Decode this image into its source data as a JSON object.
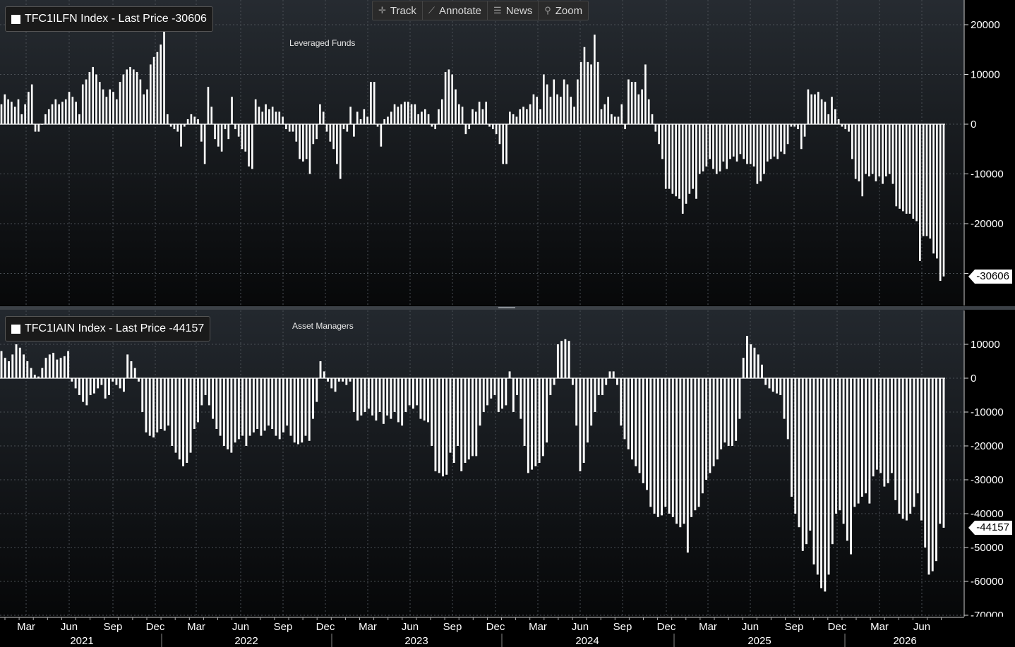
{
  "toolbar": {
    "track_label": "Track",
    "annotate_label": "Annotate",
    "news_label": "News",
    "zoom_label": "Zoom"
  },
  "colors": {
    "background": "#000000",
    "bars": "#ffffff",
    "grid": "#4a4f55",
    "legend_bg": "#1a1a1a"
  },
  "x_axis": {
    "month_labels": [
      "Mar",
      "Jun",
      "Sep",
      "Dec",
      "Mar",
      "Jun",
      "Sep",
      "Dec",
      "Mar",
      "Jun",
      "Sep",
      "Dec",
      "Mar",
      "Jun",
      "Sep",
      "Dec",
      "Mar",
      "Jun",
      "Sep",
      "Dec",
      "Mar",
      "Jun"
    ],
    "year_labels": [
      "2021",
      "2022",
      "2023",
      "2024",
      "2025",
      "2026"
    ]
  },
  "chart_data": [
    {
      "type": "bar",
      "legend": "TFC1ILFN Index - Last Price -30606",
      "title": "Leveraged Funds",
      "last_value_label": "-30606",
      "ylim": [
        -32000,
        24000
      ],
      "yticks": [
        "20000",
        "10000",
        "0",
        "-10000",
        "-20000",
        "-30000"
      ],
      "ytick_values": [
        20000,
        10000,
        0,
        -10000,
        -20000,
        -30000
      ],
      "grid": true,
      "values": [
        4000,
        6000,
        5000,
        4500,
        3500,
        5000,
        2000,
        4000,
        6500,
        8000,
        -1500,
        -1500,
        0,
        2000,
        3000,
        4000,
        5000,
        4000,
        4500,
        5000,
        6500,
        5500,
        4500,
        2000,
        8000,
        9000,
        10500,
        11500,
        10000,
        8500,
        7000,
        5500,
        7000,
        6500,
        5000,
        8500,
        10000,
        11000,
        11500,
        11000,
        10500,
        9000,
        6000,
        7000,
        12000,
        13500,
        14500,
        16000,
        20000,
        2000,
        -500,
        -1000,
        -1500,
        -4500,
        -500,
        1000,
        2000,
        1500,
        1000,
        -3500,
        -8000,
        7500,
        3500,
        -3000,
        -4500,
        -5500,
        -1000,
        -3000,
        5500,
        -1000,
        -2500,
        -5000,
        -5500,
        -8500,
        -9000,
        5000,
        3500,
        2500,
        4000,
        3000,
        3500,
        2500,
        2500,
        1500,
        -1000,
        -1500,
        -1500,
        -3500,
        -7000,
        -7500,
        -7000,
        -10000,
        -4000,
        -3000,
        4000,
        2500,
        -1500,
        -3500,
        -5000,
        -8000,
        -11000,
        -1000,
        -1500,
        3500,
        -2500,
        2500,
        1000,
        3000,
        1500,
        8500,
        8500,
        -500,
        -4500,
        1000,
        1500,
        2500,
        4000,
        3500,
        4000,
        4500,
        4500,
        4000,
        4000,
        2000,
        2500,
        3000,
        2000,
        -500,
        -1000,
        3000,
        5000,
        10500,
        11000,
        10000,
        7000,
        4000,
        3500,
        -2000,
        -1000,
        3000,
        2500,
        4500,
        3000,
        4500,
        -500,
        -1000,
        -2000,
        -4000,
        -8000,
        -8000,
        2500,
        2000,
        1500,
        3000,
        3500,
        3000,
        4000,
        6000,
        5500,
        3000,
        10000,
        8000,
        5500,
        9000,
        6000,
        5500,
        9000,
        8000,
        5500,
        3500,
        9000,
        12500,
        15500,
        12500,
        12000,
        18000,
        12500,
        3000,
        4000,
        5500,
        2000,
        1500,
        1500,
        4000,
        -1000,
        9000,
        8500,
        8500,
        6000,
        7000,
        12000,
        5000,
        2000,
        -1500,
        -4000,
        -7000,
        -13000,
        -13000,
        -14000,
        -14500,
        -15000,
        -18000,
        -16000,
        -14000,
        -13000,
        -15000,
        -10000,
        -9500,
        -8500,
        -7000,
        -9000,
        -10000,
        -9500,
        -7500,
        -9000,
        -7000,
        -6500,
        -7500,
        -6000,
        -7000,
        -8000,
        -8000,
        -8500,
        -12000,
        -11500,
        -10000,
        -7500,
        -7000,
        -6500,
        -7000,
        -5500,
        -6000,
        -4000,
        -500,
        -500,
        -1000,
        -5000,
        -2500,
        7000,
        6000,
        6000,
        6500,
        5000,
        4500,
        2000,
        5500,
        3000,
        1000,
        -500,
        -1000,
        -1500,
        -7000,
        -11000,
        -11500,
        -14500,
        -10000,
        -10500,
        -10000,
        -11500,
        -10500,
        -12000,
        -10500,
        -10000,
        -12000,
        -16500,
        -17000,
        -17500,
        -18000,
        -18000,
        -19000,
        -19500,
        -27500,
        -22500,
        -22500,
        -23000,
        -26000,
        -27000,
        -31500,
        -30606
      ]
    },
    {
      "type": "bar",
      "legend": "TFC1IAIN Index - Last Price -44157",
      "title": "Asset Managers",
      "last_value_label": "-44157",
      "ylim": [
        -70000,
        17000
      ],
      "yticks": [
        "10000",
        "0",
        "-10000",
        "-20000",
        "-30000",
        "-40000",
        "-50000",
        "-60000",
        "-70000"
      ],
      "ytick_values": [
        10000,
        0,
        -10000,
        -20000,
        -30000,
        -40000,
        -50000,
        -60000,
        -70000
      ],
      "grid": true,
      "values": [
        8000,
        6000,
        5000,
        7000,
        10000,
        9000,
        7000,
        5000,
        3000,
        1000,
        500,
        3000,
        6000,
        7000,
        7500,
        5500,
        6000,
        6500,
        8000,
        -1000,
        -3000,
        -5000,
        -7000,
        -8000,
        -5000,
        -4500,
        -3000,
        -2000,
        -6000,
        -5000,
        -1000,
        -2000,
        -3000,
        -4000,
        7000,
        5000,
        3000,
        -1000,
        -10000,
        -16000,
        -17000,
        -17500,
        -16000,
        -15000,
        -15500,
        -14000,
        -20000,
        -22000,
        -24000,
        -26000,
        -25000,
        -22000,
        -15000,
        -13000,
        -8000,
        -5000,
        -8000,
        -12000,
        -15000,
        -17000,
        -20000,
        -21000,
        -22000,
        -19000,
        -18000,
        -17000,
        -20000,
        -17000,
        -16000,
        -15000,
        -17000,
        -15500,
        -14000,
        -15000,
        -17000,
        -18000,
        -16000,
        -14000,
        -17000,
        -19000,
        -19500,
        -19000,
        -17000,
        -18500,
        -12000,
        -7000,
        5000,
        2000,
        -1000,
        -3000,
        -4000,
        -1000,
        -1000,
        -2000,
        -1000,
        -10000,
        -12500,
        -11000,
        -10000,
        -9000,
        -11000,
        -12500,
        -10000,
        -13500,
        -11000,
        -12000,
        -10000,
        -13000,
        -14000,
        -10000,
        -8000,
        -9000,
        -8000,
        -12000,
        -12500,
        -13000,
        -20000,
        -27500,
        -28000,
        -29000,
        -28500,
        -22000,
        -25000,
        -20000,
        -27500,
        -25000,
        -24000,
        -23000,
        -23000,
        -14000,
        -10000,
        -8000,
        -6000,
        -5000,
        -10000,
        -9000,
        -8000,
        2000,
        -10000,
        -5000,
        -12000,
        -20000,
        -28000,
        -27000,
        -26000,
        -25000,
        -23000,
        -19000,
        -5000,
        -2000,
        10000,
        11000,
        11500,
        11000,
        -2000,
        -14000,
        -27500,
        -25000,
        -19000,
        -14000,
        -10000,
        -5000,
        -5000,
        -2000,
        2000,
        2000,
        -2000,
        -14000,
        -18000,
        -21000,
        -24000,
        -26000,
        -28000,
        -31000,
        -33000,
        -38000,
        -40000,
        -41000,
        -40500,
        -38000,
        -40000,
        -41000,
        -43000,
        -44000,
        -43000,
        -51500,
        -41000,
        -39000,
        -38000,
        -34000,
        -30000,
        -28000,
        -26000,
        -24000,
        -21000,
        -19000,
        -20000,
        -20000,
        -18500,
        -12000,
        6000,
        12500,
        10000,
        9000,
        7000,
        4000,
        -2000,
        -3000,
        -4000,
        -4500,
        -5000,
        -12000,
        -18000,
        -35000,
        -40000,
        -44000,
        -51000,
        -49000,
        -45000,
        -55000,
        -58000,
        -62000,
        -63000,
        -58000,
        -49000,
        -40000,
        -39000,
        -43000,
        -48000,
        -52000,
        -38000,
        -37000,
        -35000,
        -34000,
        -37000,
        -29000,
        -27000,
        -28000,
        -32000,
        -31000,
        -28000,
        -36000,
        -40000,
        -41500,
        -42000,
        -40000,
        -38000,
        -34000,
        -42000,
        -50000,
        -58000,
        -57000,
        -54000,
        -43000,
        -44157
      ]
    }
  ]
}
